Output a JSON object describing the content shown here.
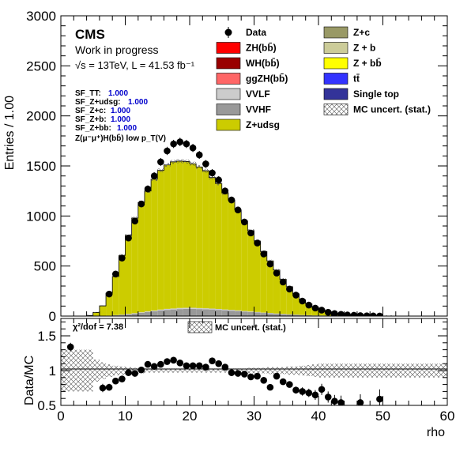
{
  "chart_data": {
    "type": "histogram",
    "title": "",
    "xlabel": "rho",
    "ylabel": "Entries / 1.00",
    "xlim": [
      0,
      60
    ],
    "ylim": [
      0,
      3000
    ],
    "x_ticks": [
      "0",
      "10",
      "20",
      "30",
      "40",
      "50",
      "60"
    ],
    "y_ticks": [
      "0",
      "500",
      "1000",
      "1500",
      "2000",
      "2500",
      "3000"
    ],
    "bin_width": 1,
    "bin_low_edges": [
      0,
      1,
      2,
      3,
      4,
      5,
      6,
      7,
      8,
      9,
      10,
      11,
      12,
      13,
      14,
      15,
      16,
      17,
      18,
      19,
      20,
      21,
      22,
      23,
      24,
      25,
      26,
      27,
      28,
      29,
      30,
      31,
      32,
      33,
      34,
      35,
      36,
      37,
      38,
      39,
      40,
      41,
      42,
      43,
      44,
      45,
      46,
      47,
      48,
      49,
      50,
      51,
      52,
      53,
      54,
      55,
      56,
      57,
      58,
      59
    ],
    "stack": [
      {
        "name": "VVHF",
        "color": "#999999",
        "values": [
          0,
          0,
          0,
          0,
          0,
          1,
          2,
          4,
          8,
          12,
          18,
          24,
          32,
          40,
          48,
          56,
          62,
          66,
          70,
          72,
          72,
          70,
          68,
          66,
          62,
          58,
          54,
          50,
          45,
          40,
          36,
          31,
          27,
          23,
          19,
          16,
          13,
          10,
          8,
          6,
          5,
          4,
          3,
          2,
          1,
          1,
          1,
          0,
          0,
          0,
          0,
          0,
          0,
          0,
          0,
          0,
          0,
          0,
          0,
          0
        ]
      },
      {
        "name": "VVLF",
        "color": "#cccccc",
        "values": [
          0,
          0,
          0,
          0,
          0,
          0,
          1,
          1,
          2,
          3,
          4,
          5,
          6,
          7,
          8,
          9,
          10,
          10,
          11,
          11,
          11,
          10,
          10,
          9,
          9,
          8,
          8,
          7,
          6,
          6,
          5,
          4,
          4,
          3,
          3,
          2,
          2,
          1,
          1,
          1,
          1,
          0,
          0,
          0,
          0,
          0,
          0,
          0,
          0,
          0,
          0,
          0,
          0,
          0,
          0,
          0,
          0,
          0,
          0,
          0
        ]
      },
      {
        "name": "Z+udsg",
        "color": "#cccc00",
        "values": [
          0,
          0,
          0,
          0,
          6,
          35,
          99,
          224,
          385,
          591,
          783,
          950,
          1098,
          1203,
          1312,
          1390,
          1438,
          1465,
          1467,
          1461,
          1439,
          1410,
          1374,
          1309,
          1254,
          1165,
          1097,
          1003,
          899,
          807,
          709,
          609,
          520,
          434,
          345,
          275,
          207,
          152,
          112,
          81,
          58,
          36,
          24,
          16,
          12,
          9,
          6,
          4,
          3,
          2,
          1,
          1,
          0,
          0,
          0,
          0,
          0,
          0,
          0,
          0
        ]
      }
    ],
    "data": {
      "name": "Data",
      "values": [
        null,
        null,
        null,
        null,
        null,
        null,
        null,
        220,
        420,
        580,
        780,
        950,
        1120,
        1270,
        1400,
        1540,
        1650,
        1720,
        1740,
        1720,
        1680,
        1610,
        1520,
        1430,
        1360,
        1250,
        1160,
        1060,
        940,
        830,
        730,
        620,
        520,
        430,
        340,
        270,
        210,
        150,
        110,
        80,
        60,
        38,
        25,
        17,
        11,
        8,
        5,
        3,
        2,
        1,
        null,
        null,
        null,
        null,
        null,
        null,
        null,
        null,
        null,
        null
      ],
      "errors": [
        null,
        null,
        null,
        null,
        null,
        null,
        null,
        15,
        20,
        24,
        28,
        31,
        33,
        36,
        37,
        39,
        41,
        41,
        42,
        41,
        41,
        40,
        39,
        38,
        37,
        35,
        34,
        33,
        31,
        29,
        27,
        25,
        23,
        21,
        18,
        16,
        14,
        12,
        10,
        9,
        8,
        6,
        5,
        4,
        3,
        3,
        2,
        2,
        1,
        1,
        null,
        null,
        null,
        null,
        null,
        null,
        null,
        null,
        null,
        null
      ]
    },
    "ratio_panel": {
      "ylabel": "Data/MC",
      "ylim": [
        0.5,
        1.75
      ],
      "y_ticks": [
        "0.5",
        "1",
        "1.5"
      ],
      "x": [
        1.5,
        6.5,
        7.5,
        8.5,
        9.5,
        10.5,
        11.5,
        12.5,
        13.5,
        14.5,
        15.5,
        16.5,
        17.5,
        18.5,
        19.5,
        20.5,
        21.5,
        22.5,
        23.5,
        24.5,
        25.5,
        26.5,
        27.5,
        28.5,
        29.5,
        30.5,
        31.5,
        32.5,
        33.5,
        34.5,
        35.5,
        36.5,
        37.5,
        38.5,
        39.5,
        40.5,
        41.5,
        42.5,
        43.5,
        46.5,
        49.5
      ],
      "ratio": [
        1.34,
        0.75,
        0.76,
        0.85,
        0.88,
        0.97,
        0.96,
        1.01,
        1.09,
        1.06,
        1.09,
        1.13,
        1.15,
        1.11,
        1.07,
        1.07,
        1.07,
        1.05,
        1.14,
        1.1,
        1.05,
        0.97,
        0.96,
        0.95,
        0.91,
        0.92,
        0.86,
        0.76,
        0.92,
        0.84,
        0.8,
        0.72,
        0.7,
        0.68,
        0.65,
        0.73,
        0.62,
        0.56,
        0.54,
        0.54,
        0.59
      ],
      "ratio_errors": [
        0.06,
        0.06,
        0.05,
        0.04,
        0.03,
        0.03,
        0.03,
        0.03,
        0.03,
        0.03,
        0.03,
        0.03,
        0.03,
        0.03,
        0.03,
        0.03,
        0.03,
        0.03,
        0.03,
        0.03,
        0.03,
        0.03,
        0.03,
        0.03,
        0.03,
        0.03,
        0.04,
        0.04,
        0.04,
        0.04,
        0.04,
        0.05,
        0.06,
        0.06,
        0.07,
        0.08,
        0.08,
        0.09,
        0.1,
        0.12,
        0.14
      ],
      "unc_band": [
        0.3,
        0.3,
        0.3,
        0.3,
        0.3,
        0.16,
        0.12,
        0.09,
        0.07,
        0.06,
        0.05,
        0.04,
        0.04,
        0.03,
        0.03,
        0.03,
        0.03,
        0.03,
        0.03,
        0.03,
        0.03,
        0.03,
        0.03,
        0.03,
        0.03,
        0.03,
        0.03,
        0.03,
        0.03,
        0.04,
        0.04,
        0.04,
        0.05,
        0.05,
        0.05,
        0.06,
        0.06,
        0.07,
        0.08,
        0.09,
        0.1,
        0.1,
        0.1,
        0.1,
        0.1,
        0.1,
        0.1,
        0.1,
        0.1,
        0.1,
        0.1,
        0.1,
        0.1,
        0.1,
        0.1,
        0.1,
        0.1,
        0.1,
        0.1,
        0.1
      ],
      "chi2_label": "χ²/dof = 7.38",
      "unc_legend": "MC uncert. (stat.)"
    },
    "ratio_xlabel": "rho"
  },
  "header": {
    "experiment": "CMS",
    "status": "Work in progress",
    "energy_lumi": "√s = 13TeV, L = 41.53 fb⁻¹"
  },
  "scale_factors": [
    {
      "label": "SF_TT:",
      "value": "1.000"
    },
    {
      "label": "SF_Z+udsg:",
      "value": "1.000"
    },
    {
      "label": "SF_Z+c:",
      "value": "1.000"
    },
    {
      "label": "SF_Z+b:",
      "value": "1.000"
    },
    {
      "label": "SF_Z+bb:",
      "value": "1.000"
    }
  ],
  "region_label": "Z(μ⁻μ⁺)H(bb̄) low p_T(V)",
  "legend": {
    "left": [
      {
        "label": "Data",
        "kind": "marker",
        "color": "#000000"
      },
      {
        "label": "ZH(bb̄)",
        "kind": "box",
        "color": "#ff0000"
      },
      {
        "label": "WH(bb̄)",
        "kind": "box",
        "color": "#990000"
      },
      {
        "label": "ggZH(bb̄)",
        "kind": "box",
        "color": "#ff6666"
      },
      {
        "label": "VVLF",
        "kind": "box",
        "color": "#cccccc"
      },
      {
        "label": "VVHF",
        "kind": "box",
        "color": "#999999"
      },
      {
        "label": "Z+udsg",
        "kind": "box",
        "color": "#cccc00"
      }
    ],
    "right": [
      {
        "label": "Z+c",
        "kind": "box",
        "color": "#999966"
      },
      {
        "label": "Z + b",
        "kind": "box",
        "color": "#cccc99"
      },
      {
        "label": "Z + bb̄",
        "kind": "box",
        "color": "#ffff00"
      },
      {
        "label": "tt̄",
        "kind": "box",
        "color": "#3333ff"
      },
      {
        "label": "Single top",
        "kind": "box",
        "color": "#333399"
      },
      {
        "label": "MC uncert. (stat.)",
        "kind": "hatch",
        "color": "#000000"
      }
    ]
  }
}
